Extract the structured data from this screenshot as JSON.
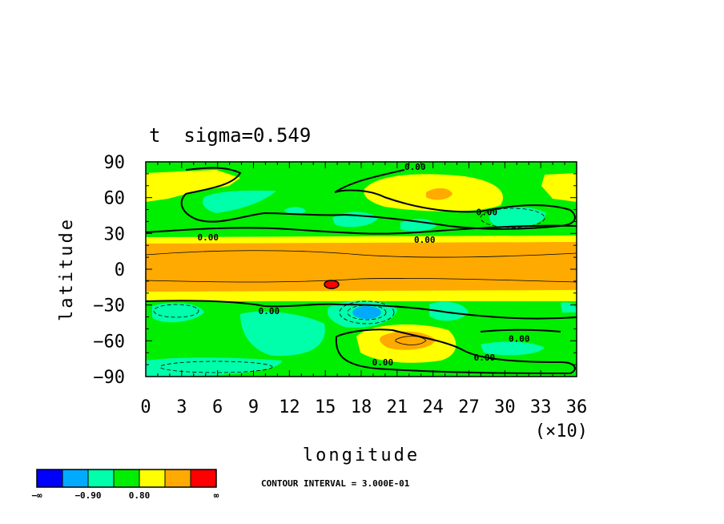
{
  "chart_data": {
    "type": "heatmap",
    "title": "t  sigma=0.549",
    "xlabel": "longitude",
    "ylabel": "latitude",
    "x_multiplier": "(×10)",
    "xlim": [
      0,
      36
    ],
    "ylim": [
      -90,
      90
    ],
    "x_ticks": [
      "0",
      "3",
      "6",
      "9",
      "12",
      "15",
      "18",
      "21",
      "24",
      "27",
      "30",
      "33",
      "36"
    ],
    "y_ticks": [
      "90",
      "60",
      "30",
      "0",
      "−30",
      "−60",
      "−90"
    ],
    "contour_labels": [
      {
        "text": "0.00",
        "x": 22.5,
        "y": 86
      },
      {
        "text": "0.00",
        "x": 28.5,
        "y": 48
      },
      {
        "text": "0.00",
        "x": 5.2,
        "y": 27
      },
      {
        "text": "0.00",
        "x": 23.3,
        "y": 25
      },
      {
        "text": "0.00",
        "x": 10.3,
        "y": -35
      },
      {
        "text": "0.00",
        "x": 31.2,
        "y": -58
      },
      {
        "text": "0.00",
        "x": 28.3,
        "y": -74
      },
      {
        "text": "0.00",
        "x": 19.8,
        "y": -78
      }
    ],
    "footer": "CONTOUR INTERVAL = 3.000E-01",
    "colorbar": {
      "colors": [
        "#0000ff",
        "#00aaff",
        "#00ffaa",
        "#00ee00",
        "#ffff00",
        "#ffaa00",
        "#ff0000"
      ],
      "labels": [
        "−∞",
        "−0.90",
        "0.80",
        "∞"
      ]
    }
  }
}
